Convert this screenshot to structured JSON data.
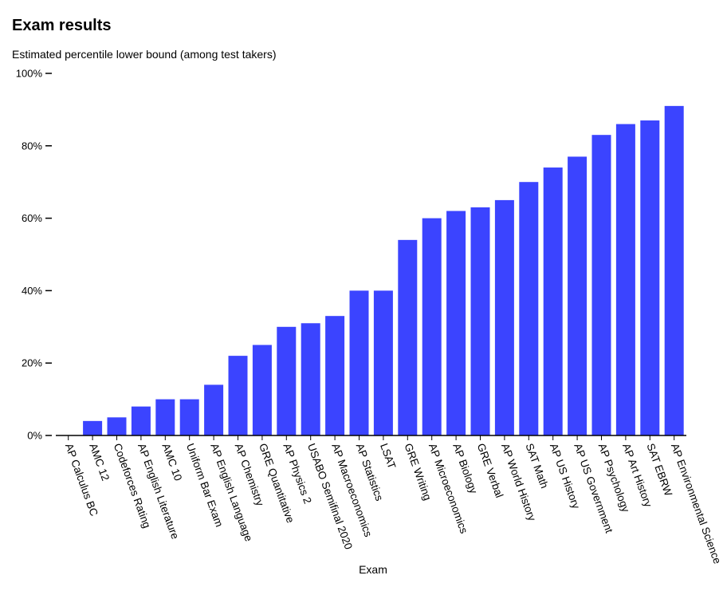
{
  "header": {
    "title": "Exam results",
    "subtitle": "Estimated percentile lower bound (among test takers)"
  },
  "colors": {
    "bar": "#3b44ff",
    "axis": "#000000"
  },
  "chart_data": {
    "type": "bar",
    "title": "Exam results",
    "subtitle": "Estimated percentile lower bound (among test takers)",
    "xlabel": "Exam",
    "ylabel": "",
    "ylim": [
      0,
      100
    ],
    "yticks": [
      0,
      20,
      40,
      60,
      80,
      100
    ],
    "ytick_labels": [
      "0%",
      "20%",
      "40%",
      "60%",
      "80%",
      "100%"
    ],
    "grid": false,
    "categories": [
      "AP Calculus BC",
      "AMC 12",
      "Codeforces Rating",
      "AP English Literature",
      "AMC 10",
      "Uniform Bar Exam",
      "AP English Language",
      "AP Chemistry",
      "GRE Quantitative",
      "AP Physics 2",
      "USABO Semifinal 2020",
      "AP Macroeconomics",
      "AP Statistics",
      "LSAT",
      "GRE Writing",
      "AP Microeconomics",
      "AP Biology",
      "GRE Verbal",
      "AP World History",
      "SAT Math",
      "AP US History",
      "AP US Government",
      "AP Psychology",
      "AP Art History",
      "SAT EBRW",
      "AP Environmental Science"
    ],
    "values": [
      0,
      4,
      5,
      8,
      10,
      10,
      14,
      22,
      25,
      30,
      31,
      33,
      40,
      40,
      54,
      60,
      62,
      63,
      65,
      70,
      74,
      77,
      83,
      86,
      87,
      91
    ]
  }
}
